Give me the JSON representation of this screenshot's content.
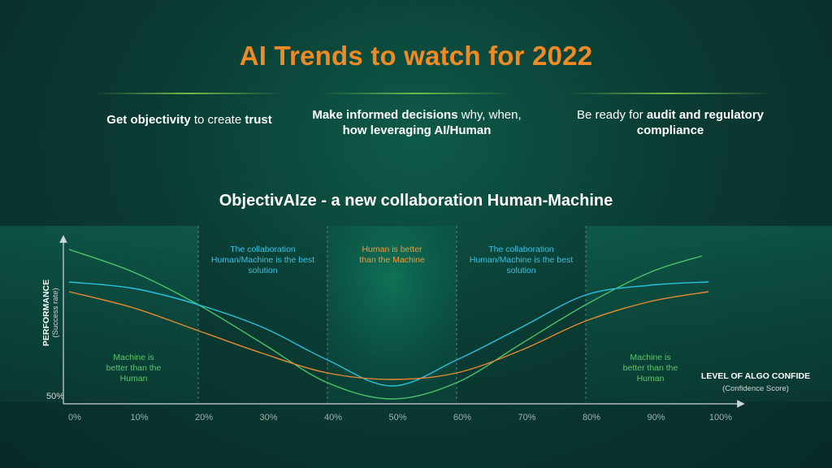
{
  "title": "AI Trends to watch for 2022",
  "points": [
    {
      "parts": [
        {
          "text": "Get objectivity",
          "bold": true
        },
        {
          "text": " to create ",
          "bold": false
        },
        {
          "text": "trust",
          "bold": true
        }
      ]
    },
    {
      "parts": [
        {
          "text": "Make informed decisions",
          "bold": true
        },
        {
          "text": " why, when,",
          "bold": false
        },
        {
          "text": "\n",
          "bold": false
        },
        {
          "text": "how leveraging AI/Human",
          "bold": true
        }
      ]
    },
    {
      "parts": [
        {
          "text": "Be ready for ",
          "bold": false
        },
        {
          "text": "audit and regulatory",
          "bold": true
        },
        {
          "text": "\n",
          "bold": false
        },
        {
          "text": "compliance",
          "bold": true
        }
      ]
    }
  ],
  "subtitle": "ObjectivAIze - a new collaboration Human-Machine",
  "colors": {
    "title": "#f08a24",
    "divider": "#7cc84a",
    "green": "#4cc36a",
    "blue": "#29c1e0",
    "orange": "#e88a33",
    "zone_text_blue": "#3bc0e0",
    "zone_text_orange": "#f29a3a",
    "zone_text_green": "#5cc66c"
  },
  "chart_data": {
    "type": "line",
    "ylabel": "PERFORMANCE",
    "ylabel_sub": "(Success rate)",
    "xlabel": "LEVEL OF ALGO CONFIDE",
    "xlabel_sub": "(Confidence Score)",
    "y_tick_labels": [
      "50%"
    ],
    "x_ticks": [
      0,
      10,
      20,
      30,
      40,
      50,
      60,
      70,
      80,
      90,
      100
    ],
    "x_tick_labels": [
      "0%",
      "10%",
      "20%",
      "30%",
      "40%",
      "50%",
      "60%",
      "70%",
      "80%",
      "90%",
      "100%"
    ],
    "xlim": [
      0,
      100
    ],
    "ylim": [
      50,
      100
    ],
    "vertical_dividers": [
      20,
      40,
      60,
      80
    ],
    "zones": [
      {
        "from": 0,
        "to": 20,
        "lines": [
          "Machine is",
          "better than the",
          "Human"
        ],
        "color_key": "zone_text_green",
        "position": "bottom"
      },
      {
        "from": 20,
        "to": 40,
        "lines": [
          "The collaboration",
          "Human/Machine is the best",
          "solution"
        ],
        "color_key": "zone_text_blue",
        "position": "top"
      },
      {
        "from": 40,
        "to": 60,
        "lines": [
          "Human is better",
          "than the Machine"
        ],
        "color_key": "zone_text_orange",
        "position": "top"
      },
      {
        "from": 60,
        "to": 80,
        "lines": [
          "The collaboration",
          "Human/Machine is the best",
          "solution"
        ],
        "color_key": "zone_text_blue",
        "position": "top"
      },
      {
        "from": 80,
        "to": 100,
        "lines": [
          "Machine is",
          "better than the",
          "Human"
        ],
        "color_key": "zone_text_green",
        "position": "bottom"
      }
    ],
    "series": [
      {
        "color_key": "green",
        "x": [
          0,
          10,
          20,
          30,
          40,
          50,
          60,
          70,
          80,
          90,
          98
        ],
        "y": [
          97,
          90,
          80,
          68,
          56,
          51,
          56,
          68,
          80,
          90,
          95
        ]
      },
      {
        "color_key": "blue",
        "x": [
          0,
          10,
          20,
          30,
          40,
          50,
          60,
          70,
          80,
          90,
          99
        ],
        "y": [
          87,
          85,
          80,
          73,
          63,
          55,
          63,
          73,
          83,
          86,
          87
        ]
      },
      {
        "color_key": "orange",
        "x": [
          0,
          10,
          20,
          30,
          40,
          50,
          60,
          70,
          80,
          90,
          99
        ],
        "y": [
          84,
          79,
          72,
          65,
          59,
          57,
          59,
          66,
          75,
          81,
          84
        ]
      }
    ]
  }
}
